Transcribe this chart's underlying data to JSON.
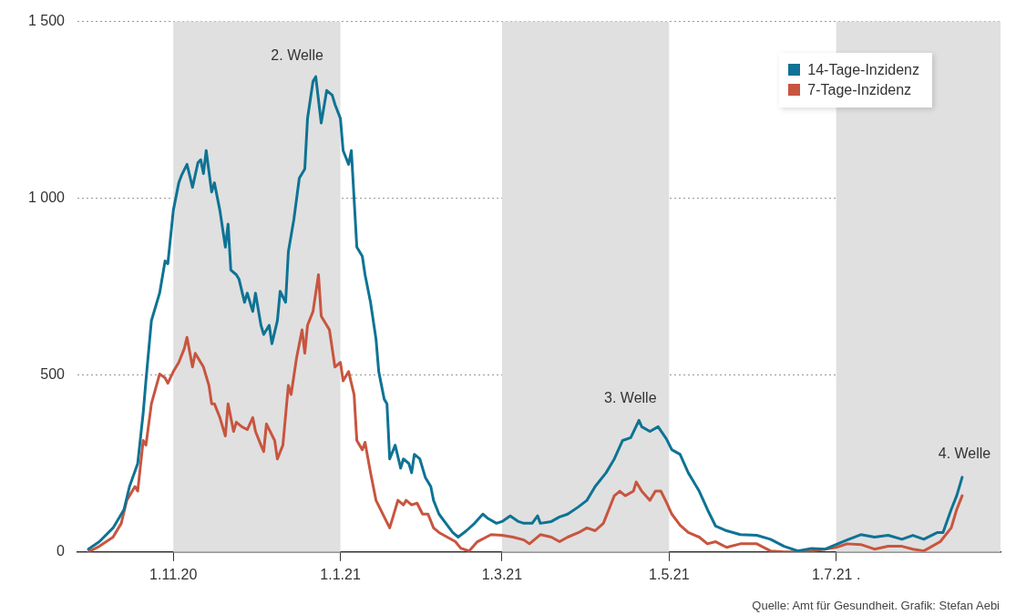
{
  "chart_data": {
    "type": "line",
    "series": [
      {
        "name": "14-Tage-Inzidenz",
        "color": "#0e7394",
        "x": [
          "2020-10-01",
          "2020-10-05",
          "2020-10-10",
          "2020-10-14",
          "2020-10-16",
          "2020-10-19",
          "2020-10-21",
          "2020-10-22",
          "2020-10-24",
          "2020-10-27",
          "2020-10-29",
          "2020-10-30",
          "2020-11-01",
          "2020-11-03",
          "2020-11-04",
          "2020-11-06",
          "2020-11-08",
          "2020-11-10",
          "2020-11-11",
          "2020-11-12",
          "2020-11-13",
          "2020-11-15",
          "2020-11-16",
          "2020-11-18",
          "2020-11-19",
          "2020-11-20",
          "2020-11-21",
          "2020-11-22",
          "2020-11-24",
          "2020-11-25",
          "2020-11-27",
          "2020-11-28",
          "2020-11-30",
          "2020-12-01",
          "2020-12-03",
          "2020-12-04",
          "2020-12-06",
          "2020-12-07",
          "2020-12-09",
          "2020-12-10",
          "2020-12-12",
          "2020-12-13",
          "2020-12-15",
          "2020-12-17",
          "2020-12-19",
          "2020-12-20",
          "2020-12-22",
          "2020-12-23",
          "2020-12-25",
          "2020-12-27",
          "2020-12-29",
          "2020-12-30",
          "2021-01-01",
          "2021-01-02",
          "2021-01-04",
          "2021-01-05",
          "2021-01-07",
          "2021-01-09",
          "2021-01-10",
          "2021-01-12",
          "2021-01-14",
          "2021-01-15",
          "2021-01-17",
          "2021-01-18",
          "2021-01-19",
          "2021-01-21",
          "2021-01-23",
          "2021-01-24",
          "2021-01-26",
          "2021-01-27",
          "2021-01-28",
          "2021-01-30",
          "2021-02-01",
          "2021-02-03",
          "2021-02-04",
          "2021-02-06",
          "2021-02-09",
          "2021-02-11",
          "2021-02-13",
          "2021-02-16",
          "2021-02-19",
          "2021-02-22",
          "2021-02-24",
          "2021-02-27",
          "2021-03-01",
          "2021-03-04",
          "2021-03-07",
          "2021-03-09",
          "2021-03-12",
          "2021-03-14",
          "2021-03-15",
          "2021-03-19",
          "2021-03-22",
          "2021-03-25",
          "2021-03-29",
          "2021-04-01",
          "2021-04-04",
          "2021-04-08",
          "2021-04-11",
          "2021-04-14",
          "2021-04-17",
          "2021-04-20",
          "2021-04-21",
          "2021-04-24",
          "2021-04-27",
          "2021-04-30",
          "2021-05-02",
          "2021-05-05",
          "2021-05-08",
          "2021-05-12",
          "2021-05-15",
          "2021-05-18",
          "2021-05-22",
          "2021-05-27",
          "2021-06-02",
          "2021-06-07",
          "2021-06-12",
          "2021-06-17",
          "2021-06-22",
          "2021-06-27",
          "2021-07-01",
          "2021-07-05",
          "2021-07-10",
          "2021-07-15",
          "2021-07-20",
          "2021-07-25",
          "2021-07-29",
          "2021-08-02",
          "2021-08-07",
          "2021-08-09",
          "2021-08-12",
          "2021-08-14",
          "2021-08-16"
        ],
        "values": [
          8,
          29,
          68,
          120,
          185,
          250,
          393,
          484,
          654,
          732,
          823,
          815,
          966,
          1044,
          1065,
          1096,
          1031,
          1101,
          1109,
          1070,
          1135,
          1018,
          1044,
          966,
          914,
          862,
          927,
          797,
          784,
          771,
          706,
          732,
          680,
          732,
          641,
          615,
          641,
          589,
          654,
          737,
          706,
          849,
          940,
          1057,
          1083,
          1226,
          1331,
          1344,
          1213,
          1305,
          1292,
          1266,
          1226,
          1135,
          1096,
          1135,
          862,
          836,
          784,
          706,
          602,
          510,
          432,
          419,
          263,
          302,
          237,
          263,
          250,
          224,
          276,
          263,
          211,
          185,
          146,
          107,
          76,
          55,
          42,
          60,
          81,
          107,
          94,
          81,
          86,
          102,
          86,
          81,
          81,
          102,
          81,
          86,
          99,
          107,
          128,
          146,
          185,
          224,
          263,
          315,
          323,
          372,
          354,
          341,
          354,
          320,
          289,
          276,
          224,
          172,
          120,
          73,
          60,
          49,
          47,
          36,
          16,
          3,
          10,
          8,
          21,
          34,
          49,
          42,
          47,
          36,
          47,
          36,
          55,
          55,
          120,
          159,
          211
        ]
      },
      {
        "name": "7-Tage-Inzidenz",
        "color": "#c8553f",
        "x": [
          "2020-10-01",
          "2020-10-05",
          "2020-10-10",
          "2020-10-13",
          "2020-10-15",
          "2020-10-18",
          "2020-10-19",
          "2020-10-21",
          "2020-10-22",
          "2020-10-24",
          "2020-10-27",
          "2020-10-29",
          "2020-10-30",
          "2020-11-01",
          "2020-11-03",
          "2020-11-05",
          "2020-11-06",
          "2020-11-08",
          "2020-11-09",
          "2020-11-11",
          "2020-11-12",
          "2020-11-14",
          "2020-11-15",
          "2020-11-16",
          "2020-11-18",
          "2020-11-20",
          "2020-11-21",
          "2020-11-23",
          "2020-11-24",
          "2020-11-26",
          "2020-11-28",
          "2020-11-30",
          "2020-12-01",
          "2020-12-03",
          "2020-12-04",
          "2020-12-05",
          "2020-12-08",
          "2020-12-09",
          "2020-12-11",
          "2020-12-13",
          "2020-12-14",
          "2020-12-16",
          "2020-12-18",
          "2020-12-19",
          "2020-12-20",
          "2020-12-22",
          "2020-12-24",
          "2020-12-25",
          "2020-12-27",
          "2020-12-28",
          "2020-12-30",
          "2021-01-01",
          "2021-01-02",
          "2021-01-04",
          "2021-01-06",
          "2021-01-07",
          "2021-01-09",
          "2021-01-10",
          "2021-01-12",
          "2021-01-14",
          "2021-01-17",
          "2021-01-19",
          "2021-01-20",
          "2021-01-22",
          "2021-01-24",
          "2021-01-25",
          "2021-01-27",
          "2021-01-29",
          "2021-01-31",
          "2021-02-02",
          "2021-02-04",
          "2021-02-06",
          "2021-02-09",
          "2021-02-12",
          "2021-02-14",
          "2021-02-17",
          "2021-02-20",
          "2021-02-25",
          "2021-03-01",
          "2021-03-05",
          "2021-03-09",
          "2021-03-11",
          "2021-03-15",
          "2021-03-19",
          "2021-03-22",
          "2021-03-25",
          "2021-03-29",
          "2021-04-01",
          "2021-04-04",
          "2021-04-07",
          "2021-04-09",
          "2021-04-11",
          "2021-04-13",
          "2021-04-15",
          "2021-04-18",
          "2021-04-19",
          "2021-04-21",
          "2021-04-24",
          "2021-04-26",
          "2021-04-28",
          "2021-04-30",
          "2021-05-02",
          "2021-05-05",
          "2021-05-08",
          "2021-05-12",
          "2021-05-15",
          "2021-05-18",
          "2021-05-22",
          "2021-05-27",
          "2021-06-02",
          "2021-06-07",
          "2021-06-12",
          "2021-06-17",
          "2021-06-22",
          "2021-06-27",
          "2021-07-01",
          "2021-07-05",
          "2021-07-10",
          "2021-07-15",
          "2021-07-20",
          "2021-07-25",
          "2021-07-29",
          "2021-08-02",
          "2021-08-05",
          "2021-08-08",
          "2021-08-12",
          "2021-08-14",
          "2021-08-16"
        ],
        "values": [
          0,
          16,
          42,
          81,
          146,
          185,
          172,
          315,
          302,
          419,
          503,
          492,
          477,
          510,
          536,
          575,
          607,
          523,
          562,
          536,
          523,
          471,
          419,
          419,
          380,
          328,
          419,
          341,
          367,
          354,
          346,
          380,
          341,
          302,
          284,
          362,
          315,
          263,
          302,
          471,
          445,
          549,
          628,
          562,
          641,
          680,
          784,
          667,
          641,
          628,
          523,
          536,
          484,
          510,
          445,
          315,
          289,
          310,
          224,
          146,
          99,
          68,
          94,
          146,
          133,
          146,
          133,
          138,
          107,
          107,
          68,
          55,
          42,
          29,
          10,
          3,
          29,
          49,
          47,
          42,
          34,
          23,
          49,
          42,
          29,
          42,
          55,
          68,
          60,
          81,
          120,
          159,
          172,
          159,
          172,
          198,
          172,
          146,
          172,
          172,
          141,
          107,
          76,
          55,
          42,
          23,
          29,
          13,
          23,
          23,
          3,
          0,
          0,
          3,
          8,
          13,
          23,
          21,
          8,
          16,
          16,
          8,
          3,
          16,
          29,
          68,
          120,
          159
        ]
      }
    ],
    "xlim": [
      "2020-09-27",
      "2021-08-30"
    ],
    "xticks": [
      {
        "value": "2020-11-01",
        "label": "1.11.20"
      },
      {
        "value": "2021-01-01",
        "label": "1.1.21"
      },
      {
        "value": "2021-03-01",
        "label": "1.3.21"
      },
      {
        "value": "2021-05-01",
        "label": "1.5.21"
      },
      {
        "value": "2021-07-01",
        "label": "1.7.21 ."
      }
    ],
    "ylim": [
      0,
      1500
    ],
    "yticks": [
      0,
      500,
      {
        "value": 1000,
        "label": "1 000"
      },
      {
        "value": 1500,
        "label": "1 500"
      }
    ],
    "grid": "y",
    "legend": "top right",
    "bands": [
      {
        "axis": "x",
        "from": "2020-11-01",
        "to": "2021-01-01",
        "color": "#e0e0e0"
      },
      {
        "axis": "x",
        "from": "2021-03-01",
        "to": "2021-05-01",
        "color": "#e0e0e0"
      },
      {
        "axis": "x",
        "from": "2021-07-01",
        "to": "2021-08-30",
        "color": "#e0e0e0"
      }
    ],
    "annotations": [
      "2. Welle",
      "3. Welle",
      "4. Welle",
      "Quelle: Amt für Gesundheit. Grafik: Stefan Aebi"
    ]
  }
}
